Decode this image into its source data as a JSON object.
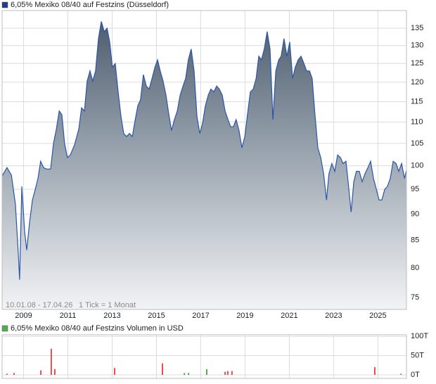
{
  "chart_data": [
    {
      "type": "area",
      "title": "6,05% Mexiko 08/40 auf Festzins (Düsseldorf)",
      "note_range": "10.01.08 - 17.04.26",
      "note_tick": "1 Tick = 1 Monat",
      "color": "#1f3d8a",
      "line_color": "#2b56a8",
      "ylog": true,
      "grid": true,
      "xlim": [
        2008.03,
        2026.29
      ],
      "xticks": [
        2009,
        2011,
        2013,
        2015,
        2017,
        2019,
        2021,
        2023,
        2025
      ],
      "ylim": [
        73.1,
        140.3
      ],
      "yticks": [
        75,
        80,
        85,
        90,
        95,
        100,
        105,
        110,
        115,
        120,
        125,
        130,
        135
      ],
      "x": [
        2008.03,
        2008.25,
        2008.45,
        2008.63,
        2008.76,
        2008.82,
        2008.92,
        2009.05,
        2009.14,
        2009.27,
        2009.4,
        2009.53,
        2009.65,
        2009.77,
        2009.9,
        2010.03,
        2010.22,
        2010.35,
        2010.48,
        2010.61,
        2010.73,
        2010.85,
        2010.98,
        2011.11,
        2011.3,
        2011.49,
        2011.62,
        2011.75,
        2011.87,
        2012.0,
        2012.12,
        2012.25,
        2012.38,
        2012.51,
        2012.64,
        2012.77,
        2012.89,
        2013.01,
        2013.14,
        2013.27,
        2013.4,
        2013.52,
        2013.65,
        2013.78,
        2013.91,
        2014.04,
        2014.16,
        2014.28,
        2014.41,
        2014.54,
        2014.67,
        2014.8,
        2014.93,
        2015.05,
        2015.17,
        2015.3,
        2015.43,
        2015.56,
        2015.68,
        2015.81,
        2015.94,
        2016.07,
        2016.2,
        2016.32,
        2016.44,
        2016.57,
        2016.7,
        2016.83,
        2016.96,
        2017.08,
        2017.21,
        2017.34,
        2017.46,
        2017.59,
        2017.72,
        2017.84,
        2017.97,
        2018.1,
        2018.23,
        2018.35,
        2018.47,
        2018.6,
        2018.73,
        2018.86,
        2018.99,
        2019.11,
        2019.24,
        2019.37,
        2019.5,
        2019.62,
        2019.74,
        2019.87,
        2020.0,
        2020.13,
        2020.26,
        2020.39,
        2020.52,
        2020.63,
        2020.76,
        2020.89,
        2021.02,
        2021.15,
        2021.27,
        2021.4,
        2021.53,
        2021.66,
        2021.78,
        2021.91,
        2022.03,
        2022.16,
        2022.29,
        2022.42,
        2022.55,
        2022.68,
        2022.79,
        2022.92,
        2023.05,
        2023.18,
        2023.31,
        2023.43,
        2023.56,
        2023.69,
        2023.79,
        2023.91,
        2024.03,
        2024.16,
        2024.29,
        2024.42,
        2024.55,
        2024.67,
        2024.8,
        2024.93,
        2025.05,
        2025.18,
        2025.31,
        2025.43,
        2025.56,
        2025.69,
        2025.82,
        2025.94,
        2026.07,
        2026.2,
        2026.29
      ],
      "values": [
        97.8,
        99.6,
        98,
        92,
        82.6,
        78,
        95.6,
        86.5,
        83.2,
        88.3,
        92.8,
        95,
        97.3,
        101,
        99.6,
        99.3,
        99.3,
        105,
        108.3,
        112.7,
        111.8,
        105,
        101.8,
        102.4,
        104.7,
        108.3,
        113.5,
        112.7,
        120.3,
        123,
        120.3,
        123,
        132,
        137,
        134,
        135,
        131,
        124,
        125,
        117.5,
        111.3,
        107.3,
        106.6,
        107.3,
        106.6,
        110.6,
        114,
        115.5,
        122,
        119,
        118.2,
        121,
        124,
        126,
        123,
        120.3,
        116.7,
        111.8,
        108,
        110.6,
        112.7,
        116.7,
        119,
        121,
        126,
        129,
        123,
        111.3,
        107.3,
        109.7,
        114,
        116.7,
        118.2,
        117.5,
        119,
        118.2,
        116.7,
        112.7,
        110.6,
        108.9,
        108.9,
        110.6,
        108,
        104,
        106.6,
        111.8,
        117.5,
        118.2,
        121,
        127,
        126,
        129,
        134,
        129,
        110.6,
        123,
        126,
        127,
        132,
        127,
        131,
        121,
        124,
        126,
        127,
        125,
        123,
        123,
        121,
        111.8,
        104,
        101.8,
        98.3,
        92.8,
        98.3,
        100.5,
        98.8,
        102.4,
        101.8,
        100.5,
        101,
        95,
        90.4,
        96.6,
        98.8,
        98.8,
        96.6,
        98.3,
        99.6,
        101,
        97.3,
        95,
        92.8,
        92.8,
        95,
        95.6,
        97.3,
        101,
        100.5,
        98.8,
        100.5,
        97.3,
        99
      ]
    },
    {
      "type": "bar",
      "title": "6,05% Mexiko 08/40 auf Festzins Volumen in USD",
      "color": "#4caf50",
      "grid": true,
      "xlim": [
        2008.03,
        2026.29
      ],
      "ylim": [
        -9,
        104
      ],
      "yticks": [
        {
          "value": 0,
          "label": "0T"
        },
        {
          "value": 50,
          "label": "50T"
        },
        {
          "value": 100,
          "label": "100T"
        }
      ],
      "x": [
        2008.25,
        2008.57,
        2009.78,
        2010.25,
        2010.41,
        2013.11,
        2015.27,
        2016.26,
        2016.45,
        2017.27,
        2018.1,
        2018.22,
        2018.41,
        2024.86,
        2026.04
      ],
      "values": [
        3,
        5,
        12,
        68,
        15,
        18,
        30,
        5,
        5,
        15,
        8,
        10,
        10,
        20,
        3
      ],
      "colors": [
        "#e05050",
        "#e05050",
        "#e05050",
        "#e05050",
        "#e05050",
        "#e05050",
        "#e05050",
        "#4caf50",
        "#4caf50",
        "#4caf50",
        "#e05050",
        "#e05050",
        "#e05050",
        "#e05050",
        "#4caf50"
      ]
    }
  ]
}
